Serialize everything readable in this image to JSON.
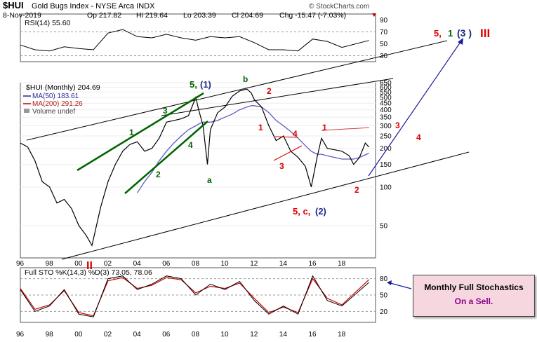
{
  "header": {
    "symbol": "$HUI",
    "name": "Gold Bugs Index - NYSE Arca INDX",
    "date": "8-Nov-2019",
    "op": "Op 217.82",
    "hi": "Hi 219.64",
    "lo": "Lo 203.39",
    "cl": "Cl 204.69",
    "chg": "Chg -15.47 (-7.03%)",
    "watermark": "© StockCharts.com"
  },
  "colors": {
    "price": "#000000",
    "price_down": "#cc0000",
    "ma50": "#5b5bbf",
    "ma200": "#d04040",
    "wave_green": "#006400",
    "wave_red": "#dd0000",
    "wave_blue": "#1c1c9a",
    "wave_darkblue": "#1a2a8a"
  },
  "chart_data": [
    {
      "type": "line",
      "title": "RSI(14) 55.60",
      "ylim": [
        20,
        100
      ],
      "yticks": [
        30,
        50,
        70,
        90
      ],
      "reference_lines": [
        30,
        70
      ],
      "x": [
        1996,
        1997,
        1998,
        1999,
        2000,
        2001,
        2002,
        2003,
        2004,
        2005,
        2006,
        2007,
        2008,
        2009,
        2010,
        2011,
        2012,
        2013,
        2014,
        2015,
        2016,
        2017,
        2018,
        2019.85
      ],
      "series": [
        {
          "values": [
            48,
            40,
            38,
            45,
            42,
            40,
            68,
            74,
            62,
            60,
            66,
            60,
            56,
            62,
            60,
            62,
            52,
            40,
            40,
            38,
            58,
            54,
            44,
            55.6
          ]
        }
      ]
    },
    {
      "type": "line",
      "title": "$HUI (Monthly) 204.69",
      "scale": "log",
      "ylim": [
        28,
        650
      ],
      "yticks": [
        50,
        100,
        150,
        200,
        250,
        300,
        350,
        400,
        450,
        500,
        550,
        600,
        650
      ],
      "xlim": [
        1996,
        2020.3
      ],
      "xticks": [
        "96",
        "98",
        "00",
        "02",
        "04",
        "06",
        "08",
        "10",
        "12",
        "14",
        "16",
        "18"
      ],
      "legend": [
        "$HUI (Monthly) 204.69",
        "MA(50) 183.61",
        "MA(200) 291.26",
        "Volume undef"
      ],
      "x": [
        1996,
        1996.5,
        1997,
        1997.5,
        1998,
        1998.5,
        1999,
        1999.5,
        2000,
        2000.5,
        2000.9,
        2001.5,
        2002,
        2002.5,
        2003,
        2003.5,
        2004,
        2004.5,
        2005,
        2005.5,
        2006,
        2006.5,
        2007,
        2007.5,
        2008,
        2008.2,
        2008.5,
        2008.8,
        2009,
        2009.5,
        2010,
        2010.5,
        2011,
        2011.5,
        2011.8,
        2012,
        2012.5,
        2013,
        2013.5,
        2014,
        2014.5,
        2015,
        2015.5,
        2015.9,
        2016.3,
        2016.6,
        2017,
        2017.5,
        2018,
        2018.5,
        2018.8,
        2019.2,
        2019.6,
        2019.85
      ],
      "series": [
        {
          "name": "$HUI (Monthly) 204.69",
          "values": [
            220,
            205,
            160,
            110,
            100,
            75,
            80,
            68,
            50,
            42,
            35,
            70,
            110,
            150,
            190,
            215,
            225,
            190,
            200,
            240,
            320,
            330,
            340,
            360,
            500,
            400,
            300,
            150,
            280,
            380,
            420,
            510,
            560,
            580,
            540,
            480,
            420,
            300,
            230,
            250,
            190,
            170,
            145,
            100,
            170,
            240,
            200,
            195,
            190,
            175,
            150,
            170,
            220,
            204.69
          ]
        },
        {
          "name": "MA(50) 183.61",
          "values": [
            null,
            null,
            null,
            null,
            null,
            null,
            null,
            null,
            null,
            null,
            null,
            null,
            null,
            null,
            null,
            null,
            90,
            110,
            130,
            160,
            190,
            220,
            250,
            280,
            300,
            310,
            320,
            320,
            320,
            330,
            350,
            370,
            400,
            420,
            430,
            430,
            420,
            380,
            330,
            300,
            270,
            240,
            210,
            190,
            180,
            180,
            175,
            170,
            165,
            165,
            165,
            170,
            178,
            183.61
          ]
        },
        {
          "name": "MA(200) 291.26",
          "values": [
            null,
            null,
            null,
            null,
            null,
            null,
            null,
            null,
            null,
            null,
            null,
            null,
            null,
            null,
            null,
            null,
            null,
            null,
            null,
            null,
            null,
            null,
            null,
            null,
            null,
            null,
            null,
            null,
            null,
            null,
            null,
            null,
            null,
            null,
            null,
            null,
            null,
            null,
            null,
            null,
            null,
            null,
            null,
            null,
            null,
            275,
            278,
            280,
            282,
            284,
            285,
            287,
            289,
            291.26
          ]
        }
      ]
    },
    {
      "type": "line",
      "title": "Full STO %K(14,3) %D(3) 73.05, 78.06",
      "ylim": [
        0,
        100
      ],
      "yticks": [
        20,
        50,
        80
      ],
      "reference_lines": [
        20,
        50,
        80
      ],
      "x": [
        1996,
        1997,
        1998,
        1999,
        2000,
        2001,
        2002,
        2003,
        2004,
        2005,
        2006,
        2007,
        2008,
        2009,
        2010,
        2011,
        2012,
        2013,
        2014,
        2015,
        2016,
        2017,
        2018,
        2019.85
      ],
      "series": [
        {
          "name": "%K(14,3)",
          "values": [
            60,
            20,
            30,
            60,
            15,
            10,
            80,
            85,
            60,
            70,
            85,
            80,
            50,
            70,
            60,
            75,
            40,
            15,
            30,
            15,
            85,
            40,
            30,
            73.05
          ]
        },
        {
          "name": "%D(3)",
          "values": [
            62,
            24,
            32,
            58,
            18,
            12,
            76,
            82,
            62,
            68,
            82,
            78,
            54,
            66,
            62,
            72,
            44,
            18,
            28,
            18,
            80,
            44,
            32,
            78.06
          ]
        }
      ]
    }
  ],
  "annotations": {
    "wave_1": "1",
    "wave_2": "2",
    "wave_3": "3",
    "wave_4": "4",
    "wave_5_prefix": "5,",
    "wave_5_paren": "(1)",
    "b": "b",
    "a": "a",
    "r2a": "2",
    "r1a": "1",
    "r4": "4",
    "r3a": "3",
    "r1b": "1",
    "r3b": "3",
    "r4b": "4",
    "r2b": "2",
    "c_prefix": "5, c,",
    "c_paren": "(2)",
    "top_prefix": "5,",
    "top_1": "1",
    "top_3": "(3 )",
    "top_roman": "III",
    "roman_ii": "II"
  },
  "callout": {
    "line1": "Monthly Full Stochastics",
    "line2": "On a Sell."
  }
}
